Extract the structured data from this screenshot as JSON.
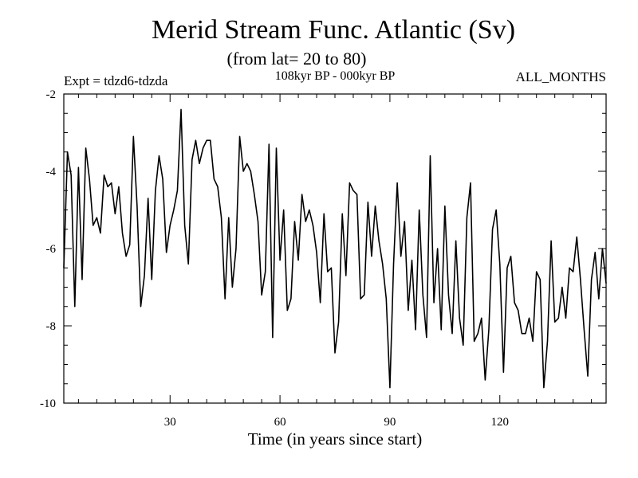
{
  "chart_data": {
    "type": "line",
    "title": "Merid Stream Func. Atlantic (Sv)",
    "subtitle": "(from lat= 20 to 80)",
    "left_label": "Expt = tdzd6-tdzda",
    "center_label": "108kyr BP - 000kyr BP",
    "right_label": "ALL_MONTHS",
    "xlabel": "Time (in years since start)",
    "ylabel": "",
    "xlim": [
      1,
      149
    ],
    "ylim": [
      -10,
      -2
    ],
    "xticks": [
      30,
      60,
      90,
      120
    ],
    "yticks": [
      -2,
      -4,
      -6,
      -8,
      -10
    ],
    "xtick_labels": [
      "30",
      "60",
      "90",
      "120"
    ],
    "ytick_labels": [
      "-2",
      "-4",
      "-6",
      "-8",
      "-10"
    ],
    "line_color": "#000000",
    "series": [
      {
        "x": [
          1,
          2,
          3,
          4,
          5,
          6,
          7,
          8,
          9,
          10,
          11,
          12,
          13,
          14,
          15,
          16,
          17,
          18,
          19,
          20,
          21,
          22,
          23,
          24,
          25,
          26,
          27,
          28,
          29,
          30,
          31,
          32,
          33,
          34,
          35,
          36,
          37,
          38,
          39,
          40,
          41,
          42,
          43,
          44,
          45,
          46,
          47,
          48,
          49,
          50,
          51,
          52,
          53,
          54,
          55,
          56,
          57,
          58,
          59,
          60,
          61,
          62,
          63,
          64,
          65,
          66,
          67,
          68,
          69,
          70,
          71,
          72,
          73,
          74,
          75,
          76,
          77,
          78,
          79,
          80,
          81,
          82,
          83,
          84,
          85,
          86,
          87,
          88,
          89,
          90,
          91,
          92,
          93,
          94,
          95,
          96,
          97,
          98,
          99,
          100,
          101,
          102,
          103,
          104,
          105,
          106,
          107,
          108,
          109,
          110,
          111,
          112,
          113,
          114,
          115,
          116,
          117,
          118,
          119,
          120,
          121,
          122,
          123,
          124,
          125,
          126,
          127,
          128,
          129,
          130,
          131,
          132,
          133,
          134,
          135,
          136,
          137,
          138,
          139,
          140,
          141,
          142,
          143,
          144,
          145,
          146,
          147,
          148,
          149
        ],
        "values": [
          -6.5,
          -3.5,
          -4.1,
          -7.5,
          -3.9,
          -6.8,
          -3.4,
          -4.2,
          -5.4,
          -5.2,
          -5.6,
          -4.1,
          -4.4,
          -4.3,
          -5.1,
          -4.4,
          -5.6,
          -6.2,
          -5.9,
          -3.1,
          -4.9,
          -7.5,
          -6.7,
          -4.7,
          -6.8,
          -4.5,
          -3.6,
          -4.2,
          -6.1,
          -5.4,
          -5.0,
          -4.5,
          -2.4,
          -5.4,
          -6.4,
          -3.7,
          -3.2,
          -3.8,
          -3.4,
          -3.2,
          -3.2,
          -4.2,
          -4.4,
          -5.2,
          -7.3,
          -5.2,
          -7.0,
          -6.0,
          -3.1,
          -4.0,
          -3.8,
          -4.0,
          -4.6,
          -5.3,
          -7.2,
          -6.6,
          -3.3,
          -8.3,
          -3.4,
          -6.3,
          -5.0,
          -7.6,
          -7.3,
          -5.3,
          -6.3,
          -4.6,
          -5.3,
          -5.0,
          -5.4,
          -6.1,
          -7.4,
          -5.1,
          -6.6,
          -6.5,
          -8.7,
          -7.9,
          -5.1,
          -6.7,
          -4.3,
          -4.5,
          -4.6,
          -7.3,
          -7.2,
          -4.8,
          -6.2,
          -4.9,
          -5.8,
          -6.4,
          -7.3,
          -9.6,
          -6.4,
          -4.3,
          -6.2,
          -5.3,
          -7.6,
          -6.3,
          -8.1,
          -5.0,
          -7.2,
          -8.3,
          -3.6,
          -7.4,
          -6.0,
          -8.1,
          -4.9,
          -7.2,
          -8.2,
          -5.8,
          -7.8,
          -8.5,
          -5.2,
          -4.3,
          -8.4,
          -8.2,
          -7.8,
          -9.4,
          -8.1,
          -5.5,
          -5.0,
          -6.4,
          -9.2,
          -6.5,
          -6.2,
          -7.4,
          -7.6,
          -8.2,
          -8.2,
          -7.8,
          -8.4,
          -6.6,
          -6.8,
          -9.6,
          -8.4,
          -5.8,
          -7.9,
          -7.8,
          -7.0,
          -7.8,
          -6.5,
          -6.6,
          -5.7,
          -6.8,
          -8.1,
          -9.3,
          -6.8,
          -6.1,
          -7.3,
          -6.0,
          -6.9
        ]
      }
    ]
  }
}
